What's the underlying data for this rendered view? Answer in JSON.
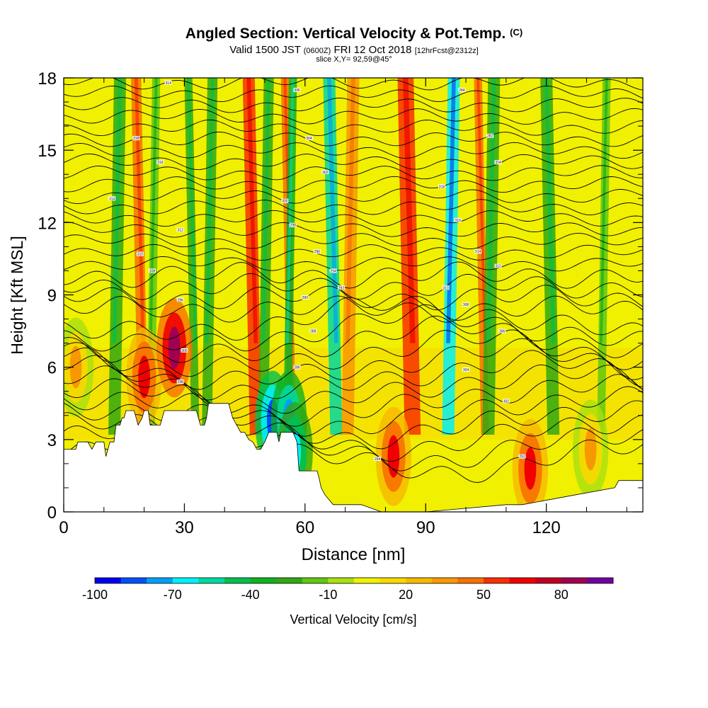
{
  "title": {
    "main": "Angled Section: Vertical Velocity & Pot.Temp.",
    "copyright": "(C)",
    "valid_a": "Valid 1500 JST",
    "valid_b": "(0600Z)",
    "valid_c": "FRI 12 Oct 2018",
    "valid_d": "[12hrFcst@2312z]",
    "slice": "slice X,Y= 92,59@45°"
  },
  "chart_data": {
    "type": "heatmap",
    "xlabel": "Distance [nm]",
    "ylabel": "Height [Kft MSL]",
    "xlim": [
      0,
      144
    ],
    "ylim": [
      0,
      18
    ],
    "xticks": [
      "0",
      "30",
      "60",
      "90",
      "120"
    ],
    "yticks": [
      "0",
      "3",
      "6",
      "9",
      "12",
      "15",
      "18"
    ],
    "colorbar": {
      "label": "Vertical Velocity [cm/s]",
      "tick_labels": [
        "-100",
        "-70",
        "-40",
        "-10",
        "20",
        "50",
        "80"
      ],
      "levels": [
        -100,
        -90,
        -80,
        -70,
        -60,
        -50,
        -40,
        -30,
        -20,
        -10,
        0,
        10,
        20,
        30,
        40,
        50,
        60,
        70,
        80,
        90
      ],
      "colors": [
        "#0000f0",
        "#0050f8",
        "#00a0f8",
        "#00f0f8",
        "#00d8a0",
        "#00c050",
        "#10b020",
        "#30a810",
        "#60c810",
        "#a8e010",
        "#f0f000",
        "#f8d800",
        "#f8b800",
        "#f89800",
        "#f87000",
        "#f83000",
        "#f00000",
        "#c00020",
        "#a00050",
        "#7000a0"
      ]
    },
    "vertical_velocity_bands": [
      {
        "x": 14,
        "w": 3,
        "value": -30
      },
      {
        "x": 18,
        "w": 2.5,
        "value": 40
      },
      {
        "x": 23,
        "w": 2,
        "value": -20
      },
      {
        "x": 31,
        "w": 2,
        "value": -30
      },
      {
        "x": 37,
        "w": 2.5,
        "value": -30
      },
      {
        "x": 46,
        "w": 3,
        "value": 50
      },
      {
        "x": 51,
        "w": 2.5,
        "value": -30
      },
      {
        "x": 55,
        "w": 2,
        "value": 40
      },
      {
        "x": 57,
        "w": 2,
        "value": -40
      },
      {
        "x": 66,
        "w": 3,
        "value": -60
      },
      {
        "x": 72,
        "w": 3,
        "value": 30
      },
      {
        "x": 85,
        "w": 4,
        "value": 50
      },
      {
        "x": 97,
        "w": 3,
        "value": -70
      },
      {
        "x": 103,
        "w": 2,
        "value": 40
      },
      {
        "x": 107,
        "w": 3,
        "value": -30
      },
      {
        "x": 120,
        "w": 3,
        "value": -30
      },
      {
        "x": 135,
        "w": 2,
        "value": -20
      }
    ],
    "vertical_velocity_cells": [
      {
        "x": 20,
        "y": 5.6,
        "value": 60
      },
      {
        "x": 27.5,
        "y": 6.8,
        "value": 80
      },
      {
        "x": 52,
        "y": 3.8,
        "value": -90
      },
      {
        "x": 56,
        "y": 3.8,
        "value": -80
      },
      {
        "x": 57.5,
        "y": 2.5,
        "value": -70
      },
      {
        "x": 82,
        "y": 2.3,
        "value": 60
      },
      {
        "x": 116,
        "y": 1.8,
        "value": 60
      },
      {
        "x": 131,
        "y": 2.6,
        "value": 30
      },
      {
        "x": 3,
        "y": 6.0,
        "value": 30
      }
    ],
    "terrain_height_kft": [
      [
        0,
        2.6
      ],
      [
        3,
        2.6
      ],
      [
        3.5,
        2.9
      ],
      [
        6,
        2.9
      ],
      [
        7,
        2.6
      ],
      [
        8,
        2.9
      ],
      [
        10,
        2.9
      ],
      [
        10.5,
        2.3
      ],
      [
        11.5,
        2.9
      ],
      [
        12.5,
        2.9
      ],
      [
        13,
        3.6
      ],
      [
        14,
        3.6
      ],
      [
        14.5,
        3.9
      ],
      [
        15,
        3.9
      ],
      [
        15.5,
        4.2
      ],
      [
        17.5,
        4.2
      ],
      [
        18,
        3.9
      ],
      [
        18.5,
        3.6
      ],
      [
        19.5,
        3.9
      ],
      [
        20,
        4.2
      ],
      [
        21,
        4.2
      ],
      [
        21.5,
        3.6
      ],
      [
        24,
        3.6
      ],
      [
        24.5,
        3.9
      ],
      [
        25,
        4.2
      ],
      [
        33,
        4.2
      ],
      [
        34,
        3.6
      ],
      [
        35,
        3.6
      ],
      [
        35.5,
        3.9
      ],
      [
        36,
        4.5
      ],
      [
        41,
        4.5
      ],
      [
        42,
        3.9
      ],
      [
        43,
        3.6
      ],
      [
        44,
        3.3
      ],
      [
        45,
        3.3
      ],
      [
        46,
        3.0
      ],
      [
        47,
        2.9
      ],
      [
        48,
        2.6
      ],
      [
        49,
        2.6
      ],
      [
        50,
        2.9
      ],
      [
        51,
        3.3
      ],
      [
        53,
        3.3
      ],
      [
        53.5,
        2.9
      ],
      [
        54,
        3.3
      ],
      [
        57,
        3.3
      ],
      [
        58,
        2.9
      ],
      [
        58.5,
        1.7
      ],
      [
        63,
        1.7
      ],
      [
        63.5,
        1.4
      ],
      [
        64,
        1.0
      ],
      [
        65,
        0.7
      ],
      [
        66,
        0.5
      ],
      [
        67,
        0.3
      ],
      [
        70,
        0.3
      ],
      [
        74,
        0.3
      ],
      [
        79,
        0
      ],
      [
        90,
        0
      ],
      [
        110,
        0.3
      ],
      [
        114,
        0.3
      ],
      [
        127,
        0.7
      ],
      [
        137,
        1.0
      ],
      [
        138,
        1.3
      ],
      [
        144,
        1.3
      ]
    ],
    "theta_contour_labels": [
      "314",
      "318",
      "316",
      "314",
      "312",
      "310",
      "308",
      "306",
      "304",
      "302",
      "300",
      "298",
      "296",
      "294",
      "292",
      "290",
      "288",
      "286",
      "284",
      "282"
    ]
  }
}
